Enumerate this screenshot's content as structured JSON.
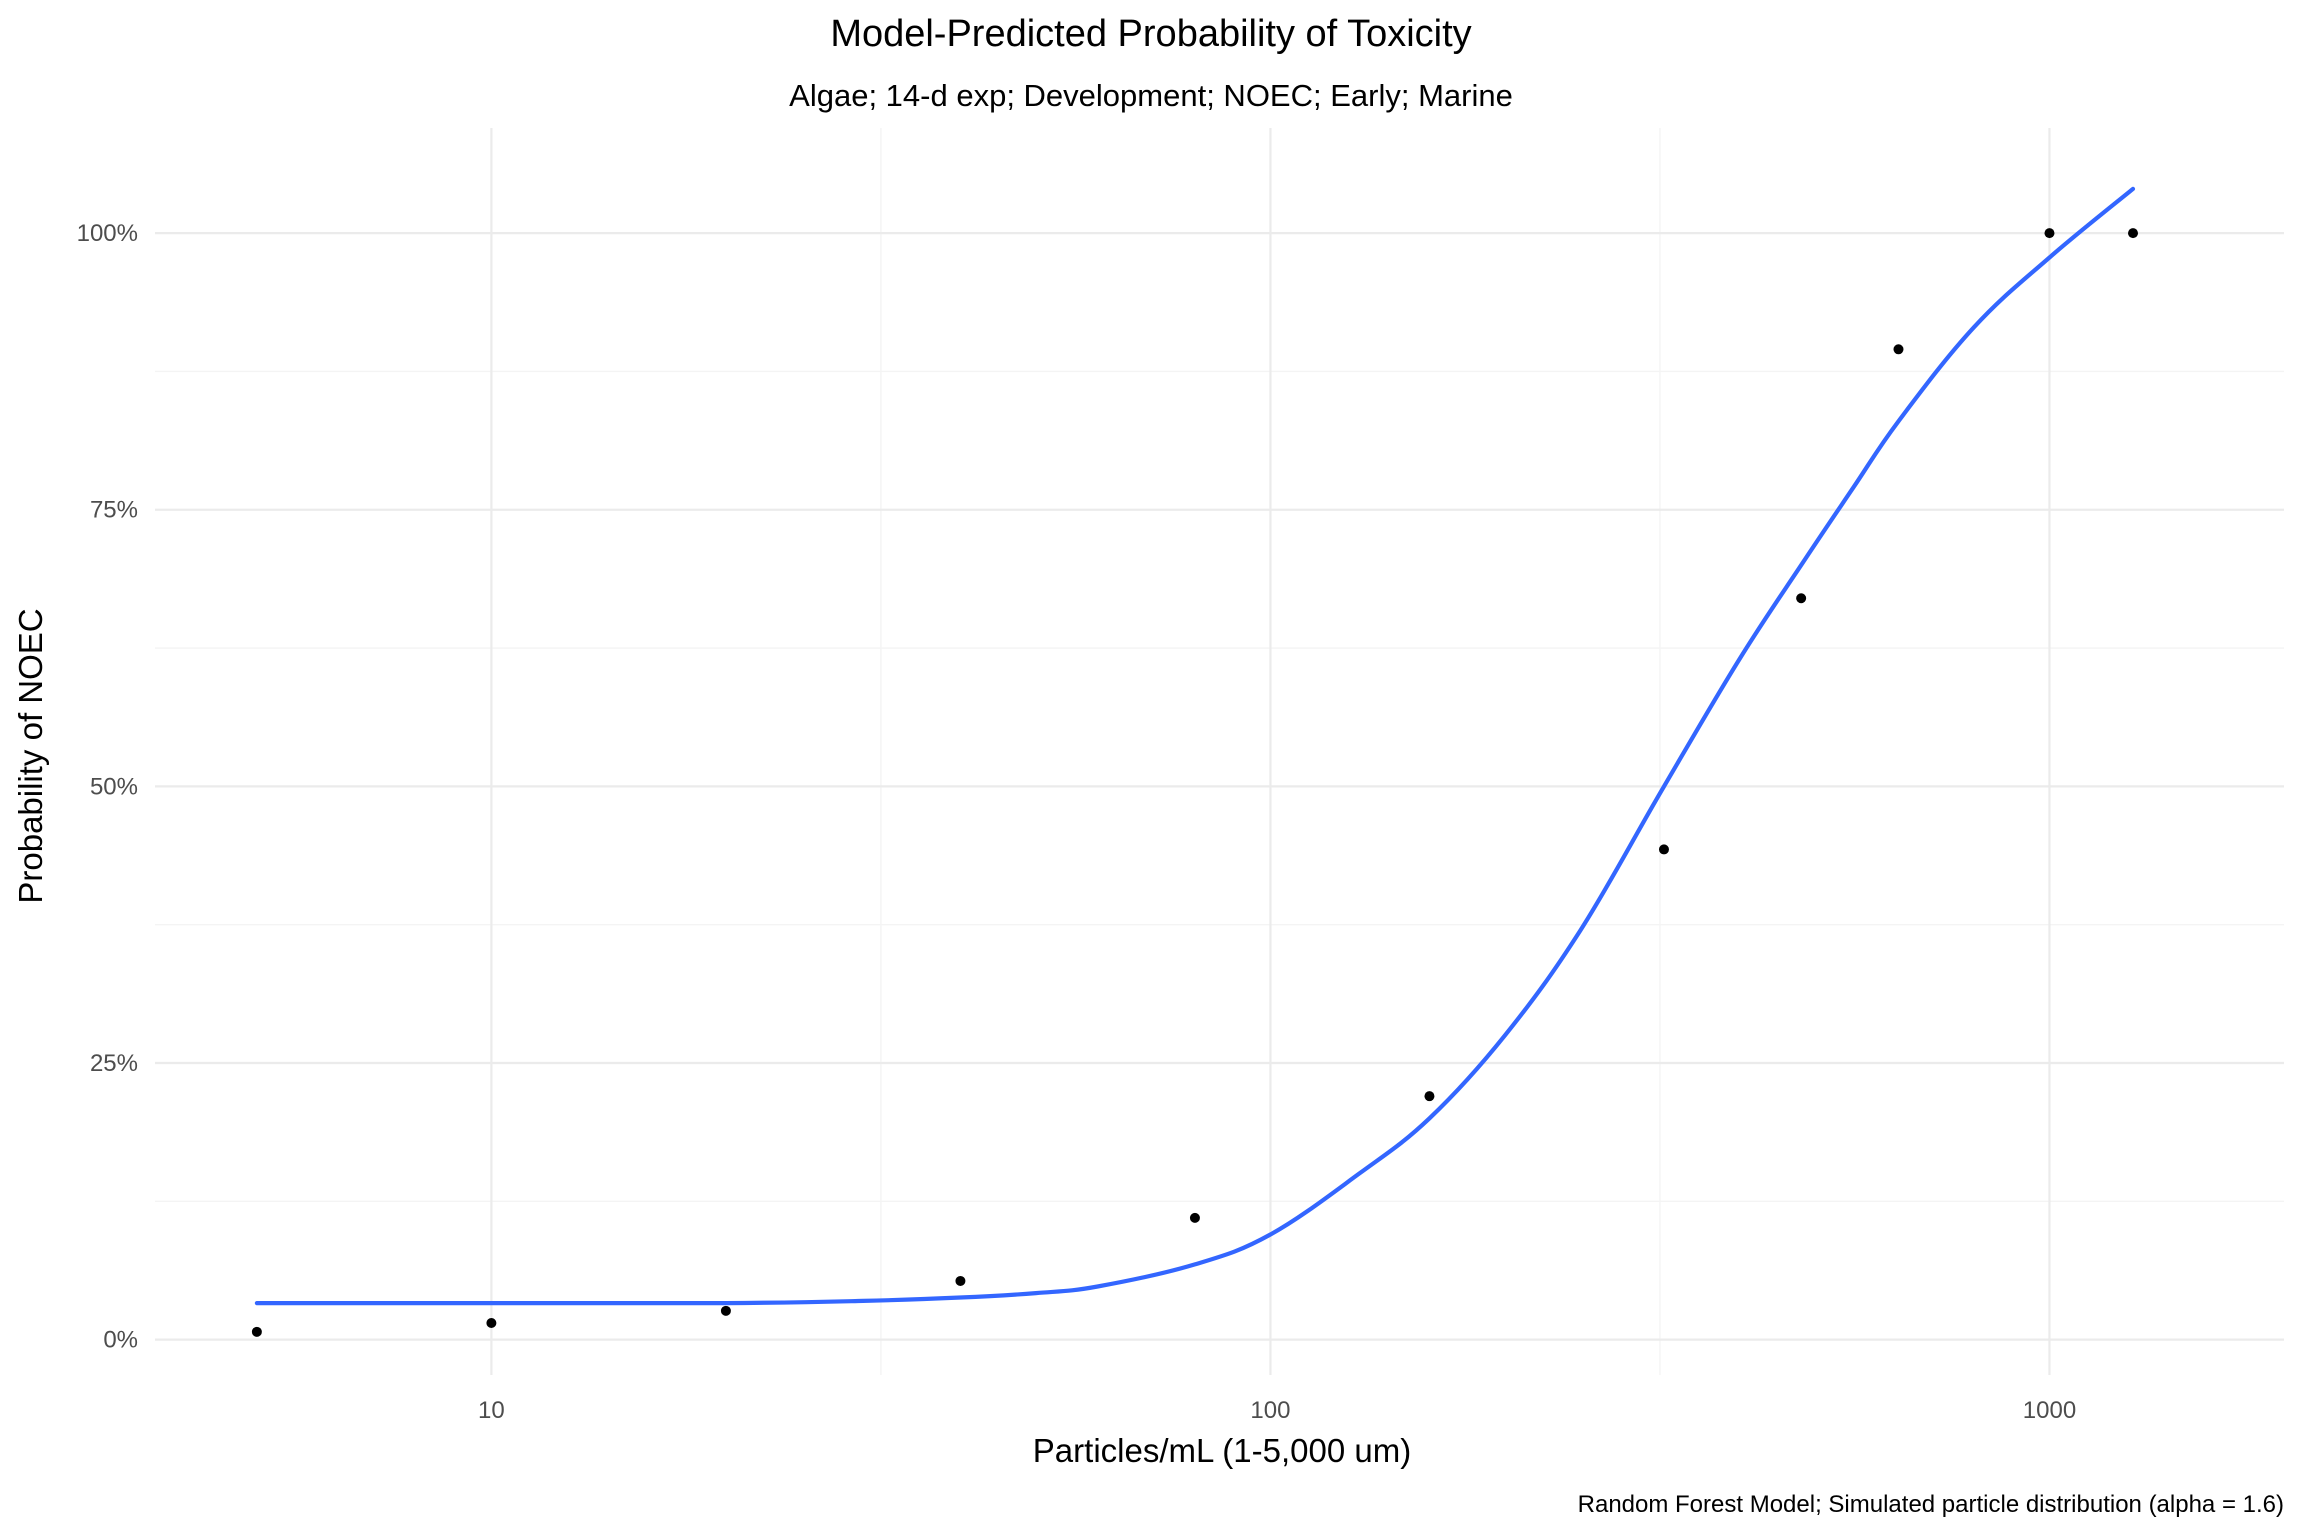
{
  "chart_data": {
    "type": "scatter",
    "title": "Model-Predicted Probability of Toxicity",
    "subtitle": "Algae; 14-d exp; Development; NOEC; Early; Marine",
    "caption": "Random Forest Model; Simulated particle distribution (alpha = 1.6)",
    "xlabel": "Particles/mL (1-5,000 um)",
    "ylabel": "Probability of NOEC",
    "x_scale": "log10",
    "xlim": [
      3.7,
      2000
    ],
    "ylim": [
      -0.032,
      1.095
    ],
    "x_ticks": [
      10,
      100,
      1000
    ],
    "x_tick_labels": [
      "10",
      "100",
      "1000"
    ],
    "y_ticks": [
      0,
      0.25,
      0.5,
      0.75,
      1.0
    ],
    "y_tick_labels": [
      "0%",
      "25%",
      "50%",
      "75%",
      "100%"
    ],
    "grid": true,
    "legend": "none",
    "points": {
      "x": [
        5,
        10,
        20,
        40,
        80,
        160,
        320,
        480,
        640,
        1000,
        1280
      ],
      "y": [
        0.007,
        0.015,
        0.026,
        0.053,
        0.11,
        0.22,
        0.443,
        0.67,
        0.895,
        1.0,
        1.0
      ]
    },
    "smooth_line": {
      "color": "#3366ff",
      "x": [
        5,
        10,
        20,
        30,
        40,
        50,
        60,
        80,
        100,
        130,
        160,
        200,
        250,
        320,
        400,
        480,
        560,
        640,
        800,
        1000,
        1280
      ],
      "y": [
        0.033,
        0.033,
        0.033,
        0.035,
        0.038,
        0.042,
        0.048,
        0.068,
        0.095,
        0.15,
        0.2,
        0.275,
        0.37,
        0.5,
        0.615,
        0.7,
        0.77,
        0.83,
        0.915,
        0.978,
        1.04
      ]
    },
    "colors": {
      "points": "#000000",
      "line": "#3366ff",
      "grid": "#ebebeb"
    }
  }
}
